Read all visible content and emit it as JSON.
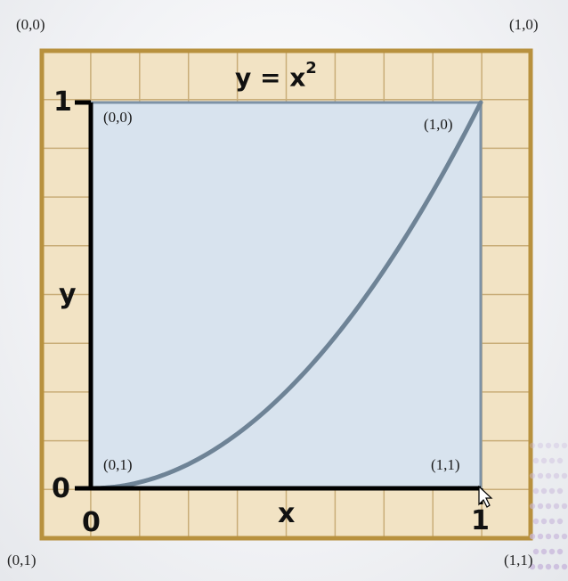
{
  "title": {
    "base": "y = x",
    "exponent": "2"
  },
  "outer_corner_labels": {
    "top_left": "(0,0)",
    "top_right": "(1,0)",
    "bottom_left": "(0,1)",
    "bottom_right": "(1,1)"
  },
  "inner_corner_labels": {
    "top_left": "(0,0)",
    "top_right": "(1,0)",
    "bottom_left": "(0,1)",
    "bottom_right": "(1,1)"
  },
  "axes": {
    "x_label": "x",
    "y_label": "y",
    "x_ticks": [
      "0",
      "1"
    ],
    "y_ticks": [
      "0",
      "1"
    ]
  },
  "colors": {
    "grid_fill": "#f2e3c4",
    "grid_line": "#c9ad78",
    "frame": "#b8913e",
    "plot_fill": "#d8e3ee",
    "curve": "#6e8396",
    "axis": "#000000"
  },
  "chart_data": {
    "type": "line",
    "function": "y = x^2",
    "x": [
      0,
      0.1,
      0.2,
      0.3,
      0.4,
      0.5,
      0.6,
      0.7,
      0.8,
      0.9,
      1.0
    ],
    "y": [
      0,
      0.01,
      0.04,
      0.09,
      0.16,
      0.25,
      0.36,
      0.49,
      0.64,
      0.81,
      1.0
    ],
    "xlim": [
      0,
      1
    ],
    "ylim": [
      0,
      1
    ],
    "xlabel": "x",
    "ylabel": "y"
  }
}
